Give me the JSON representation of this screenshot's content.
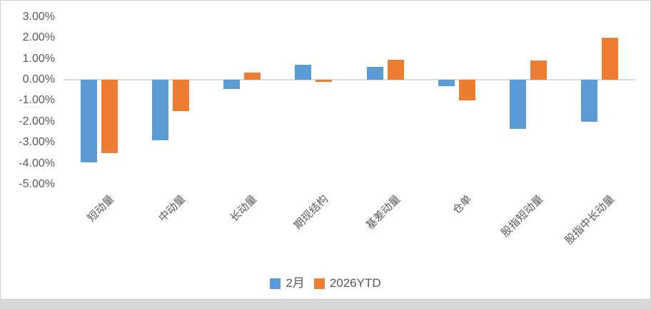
{
  "colors": {
    "page_bg": "#D8D8D8",
    "card_bg": "#FFFFFF",
    "card_border": "#CFCFCF",
    "axis_text": "#595959",
    "zero_line": "#D9D9D9",
    "series_blue": "#5B9BD5",
    "series_orange": "#ED7D31"
  },
  "chart_data": {
    "type": "bar",
    "title": "",
    "xlabel": "",
    "ylabel": "",
    "categories": [
      "短动量",
      "中动量",
      "长动量",
      "期现结构",
      "基差动量",
      "仓单",
      "股指短动量",
      "股指中长动量"
    ],
    "series": [
      {
        "name": "2月",
        "color": "#5B9BD5",
        "values": [
          -3.95,
          -2.9,
          -0.45,
          0.7,
          0.6,
          -0.3,
          -2.35,
          -2.0
        ]
      },
      {
        "name": "2026YTD",
        "color": "#ED7D31",
        "values": [
          -3.5,
          -1.5,
          0.35,
          -0.1,
          0.95,
          -1.0,
          0.9,
          2.0
        ]
      }
    ],
    "ylim": [
      -5,
      3
    ],
    "yticks": [
      {
        "value": 3,
        "label": "3.00%"
      },
      {
        "value": 2,
        "label": "2.00%"
      },
      {
        "value": 1,
        "label": "1.00%"
      },
      {
        "value": 0,
        "label": "0.00%"
      },
      {
        "value": -1,
        "label": "-1.00%"
      },
      {
        "value": -2,
        "label": "-2.00%"
      },
      {
        "value": -3,
        "label": "-3.00%"
      },
      {
        "value": -4,
        "label": "-4.00%"
      },
      {
        "value": -5,
        "label": "-5.00%"
      }
    ],
    "grid": false,
    "gridlines_visible": "zero-only",
    "legend_position": "bottom",
    "category_label_rotation_deg": 45
  }
}
